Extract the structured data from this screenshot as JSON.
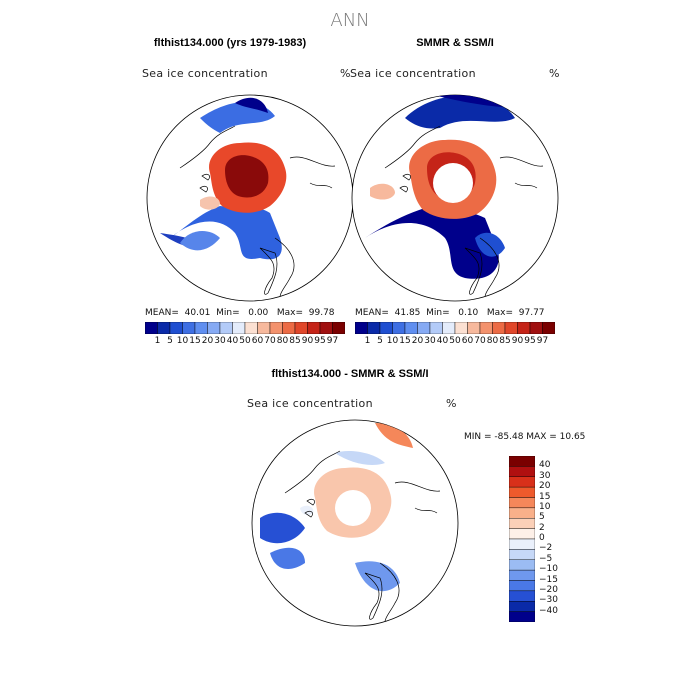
{
  "figure_title": "ANN",
  "panels": [
    {
      "title": "flthist134.000 (yrs 1979-1983)",
      "field": "Sea ice concentration",
      "unit": "%",
      "stats": {
        "mean_label": "MEAN=",
        "mean": "40.01",
        "min_label": "Min=",
        "min": "0.00",
        "max_label": "Max=",
        "max": "99.78"
      }
    },
    {
      "title": "SMMR & SSM/I",
      "field": "Sea ice concentration",
      "unit": "%",
      "stats": {
        "mean_label": "MEAN=",
        "mean": "41.85",
        "min_label": "Min=",
        "min": "0.10",
        "max_label": "Max=",
        "max": "97.77"
      }
    }
  ],
  "abs_colorbar": {
    "labels": [
      "1",
      "5",
      "10",
      "15",
      "20",
      "30",
      "40",
      "50",
      "60",
      "70",
      "80",
      "85",
      "90",
      "95",
      "97"
    ],
    "colors": [
      "#00008b",
      "#0a2aa8",
      "#1f4fd1",
      "#3e6fe3",
      "#5f8ef0",
      "#86aaf4",
      "#b3cbf8",
      "#e4ecfb",
      "#fbe0d2",
      "#f7b99d",
      "#f3926d",
      "#ec6b45",
      "#e0472a",
      "#c52418",
      "#a01010",
      "#7a0000"
    ]
  },
  "diff_panel": {
    "title": "flthist134.000 - SMMR & SSM/I",
    "field": "Sea ice concentration",
    "unit": "%",
    "minmax": "MIN = -85.48 MAX =  10.65"
  },
  "diff_colorbar": {
    "labels": [
      "40",
      "30",
      "20",
      "15",
      "10",
      "5",
      "2",
      "0",
      "−2",
      "−5",
      "−10",
      "−15",
      "−20",
      "−30",
      "−40"
    ],
    "colors": [
      "#7a0000",
      "#b01010",
      "#d8301a",
      "#ee5a2c",
      "#f5875a",
      "#f9b08a",
      "#fbd0b8",
      "#fdf0e8",
      "#eaf0fb",
      "#c6d8f7",
      "#9bbcf3",
      "#6f98ee",
      "#4a78e6",
      "#2650d4",
      "#0a2aa8",
      "#00008b"
    ]
  }
}
